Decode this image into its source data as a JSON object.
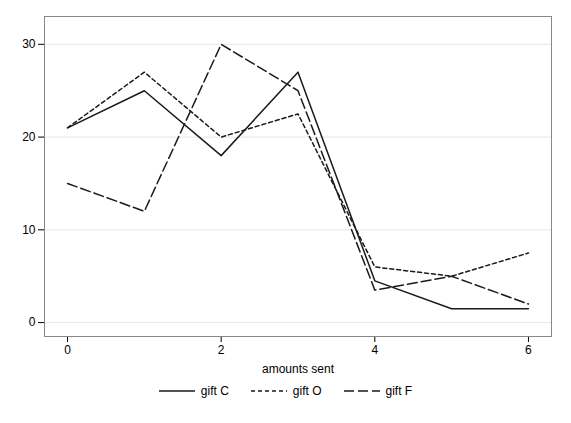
{
  "chart_data": {
    "type": "line",
    "x": [
      0,
      1,
      2,
      3,
      4,
      5,
      6
    ],
    "series": [
      {
        "name": "gift C",
        "color": "#1a1a1a",
        "line_style": "solid",
        "values": [
          21,
          25,
          18,
          27,
          4.5,
          1.5,
          1.5
        ]
      },
      {
        "name": "gift O",
        "color": "#1a1a1a",
        "line_style": "dashed",
        "values": [
          21,
          27,
          20,
          22.5,
          6,
          5,
          7.5
        ]
      },
      {
        "name": "gift F",
        "color": "#1a1a1a",
        "line_style": "longdash",
        "values": [
          15,
          12,
          30,
          25,
          3.5,
          5,
          2
        ]
      }
    ],
    "xlabel": "amounts sent",
    "xlim": [
      -0.3,
      6.3
    ],
    "ylim": [
      -1.5,
      33
    ],
    "xticks": [
      0,
      2,
      4,
      6
    ],
    "yticks": [
      0,
      10,
      20,
      30
    ],
    "grid": "y",
    "legend": "bottom"
  }
}
